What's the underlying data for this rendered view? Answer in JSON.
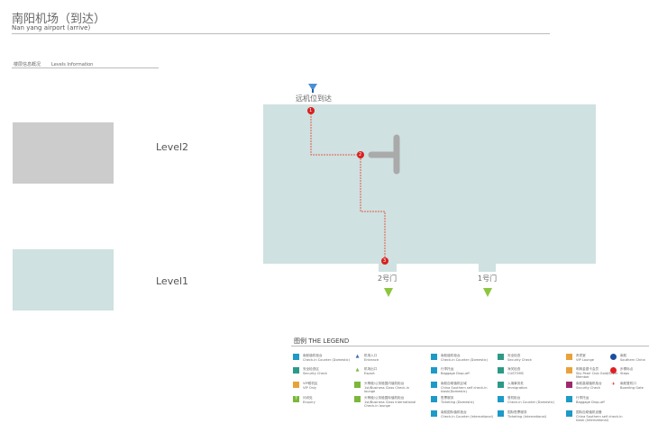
{
  "header": {
    "title": "南阳机场（到达）",
    "subtitle": "Nan yang airport  (arrive)"
  },
  "levels_info": {
    "cn": "楼层信息概况",
    "en": "Levels Information",
    "levels": [
      {
        "label": "Level2",
        "color": "#cccccc"
      },
      {
        "label": "Level1",
        "color": "#cfe1e1"
      }
    ]
  },
  "map": {
    "floor_color": "#cfe1e1",
    "route_color": "#e05a4a",
    "entry_label": "远机位到达",
    "markers": [
      "1",
      "2",
      "3"
    ],
    "gates": [
      {
        "label": "2号门"
      },
      {
        "label": "1号门"
      }
    ]
  },
  "legend": {
    "title_cn": "图例",
    "title_en": "THE LEGEND",
    "items": [
      {
        "cn": "南航值机柜台",
        "en": "Check-in Counter (Domestic)",
        "color": "#1d9ac6",
        "icon": "square"
      },
      {
        "cn": "安全检查区",
        "en": "Security Check",
        "color": "#2c9a86",
        "icon": "square"
      },
      {
        "cn": "VIP候机区",
        "en": "VIP Only",
        "color": "#e8a23a",
        "icon": "square"
      },
      {
        "cn": "问讯处",
        "en": "Enquiry",
        "color": "#7bb83a",
        "icon": "?"
      },
      {
        "cn": "机场入口",
        "en": "Entrance",
        "color": "#3a6ab8",
        "icon": "person"
      },
      {
        "cn": "机场出口",
        "en": "Export",
        "color": "#7bb83a",
        "icon": "person"
      },
      {
        "cn": "头等舱/公务舱国内值机柜台",
        "en": "1st/Business Class Check-in lounge",
        "color": "#7bb83a",
        "icon": "counter"
      },
      {
        "cn": "头等舱/公务舱国际值机柜台",
        "en": "1st/Business Class International Check-in lounge",
        "color": "#7bb83a",
        "icon": "counter"
      },
      {
        "cn": "南航值机柜台",
        "en": "Check-in Counter (Domestic)",
        "color": "#1d9ac6",
        "icon": "counter"
      },
      {
        "cn": "行李托运",
        "en": "Baggage Drop-off",
        "color": "#1d9ac6",
        "icon": "grid"
      },
      {
        "cn": "南航自助值机区域",
        "en": "China Southern self check-in kiosk(Domestic)",
        "color": "#1d9ac6",
        "icon": "kiosk"
      },
      {
        "cn": "售票服务",
        "en": "Ticketing (Domestic)",
        "color": "#1d9ac6",
        "icon": "ticket"
      },
      {
        "cn": "南航国际值机柜台",
        "en": "Check-in Counter (International)",
        "color": "#1d9ac6",
        "icon": "counter"
      },
      {
        "cn": "安全检查",
        "en": "Security Check",
        "color": "#2c9a86",
        "icon": "check"
      },
      {
        "cn": "海关检查",
        "en": "CUSTOMS",
        "color": "#2c9a86",
        "icon": "check"
      },
      {
        "cn": "入境事务处",
        "en": "Immigration",
        "color": "#2c9a86",
        "icon": "check"
      },
      {
        "cn": "登机柜台",
        "en": "Check-in Counter (Domestic)",
        "color": "#1d9ac6",
        "icon": "counter"
      },
      {
        "cn": "国际售票服务",
        "en": "Ticketing (International)",
        "color": "#1d9ac6",
        "icon": "ticket"
      },
      {
        "cn": "贵宾室",
        "en": "VIP Lounge",
        "color": "#e8a23a",
        "icon": "vip"
      },
      {
        "cn": "明珠金银卡会员",
        "en": "Sky Pearl Club Gold/Silver Member",
        "color": "#e8a23a",
        "icon": "vip"
      },
      {
        "cn": "南航高端值机柜台",
        "en": "Security Check",
        "color": "#9c2a6a",
        "icon": "square"
      },
      {
        "cn": "行李托运",
        "en": "Baggage Drop-off",
        "color": "#1d9ac6",
        "icon": "grid"
      },
      {
        "cn": "国际自助值机设备",
        "en": "China Southern self check-in kiosk (International)",
        "color": "#1d9ac6",
        "icon": "kiosk"
      },
      {
        "cn": "南航",
        "en": "Southern China",
        "color": "#1a4fa0",
        "icon": "logo"
      },
      {
        "cn": "步骤标点",
        "en": "Steps",
        "color": "#e02020",
        "icon": "pin"
      },
      {
        "cn": "南航登机口",
        "en": "Boarding Gate",
        "color": "#e02020",
        "icon": "plane"
      }
    ]
  }
}
